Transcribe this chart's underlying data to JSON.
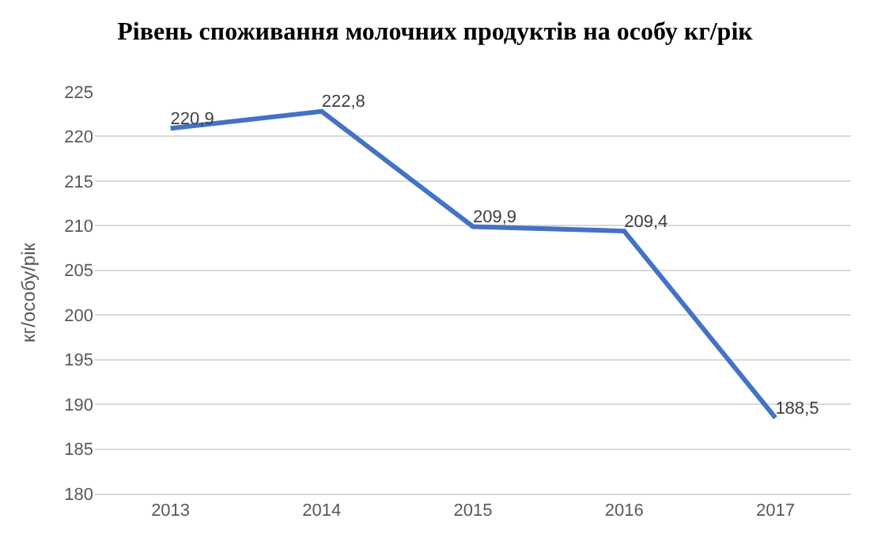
{
  "chart_data": {
    "type": "line",
    "title": "Рівень споживання молочних продуктів на особу кг/рік",
    "ylabel": "кг/особу/рік",
    "categories": [
      "2013",
      "2014",
      "2015",
      "2016",
      "2017"
    ],
    "series": [
      {
        "color": "#4472c4",
        "values": [
          220.9,
          222.8,
          209.9,
          209.4,
          188.5
        ],
        "value_labels": [
          "220,9",
          "222,8",
          "209,9",
          "209,4",
          "188,5"
        ]
      }
    ],
    "ylim": [
      180,
      225
    ],
    "yticks": [
      180,
      185,
      190,
      195,
      200,
      205,
      210,
      215,
      220,
      225
    ],
    "grid": "y",
    "legend": false,
    "marker": "none",
    "line_style": "solid"
  }
}
